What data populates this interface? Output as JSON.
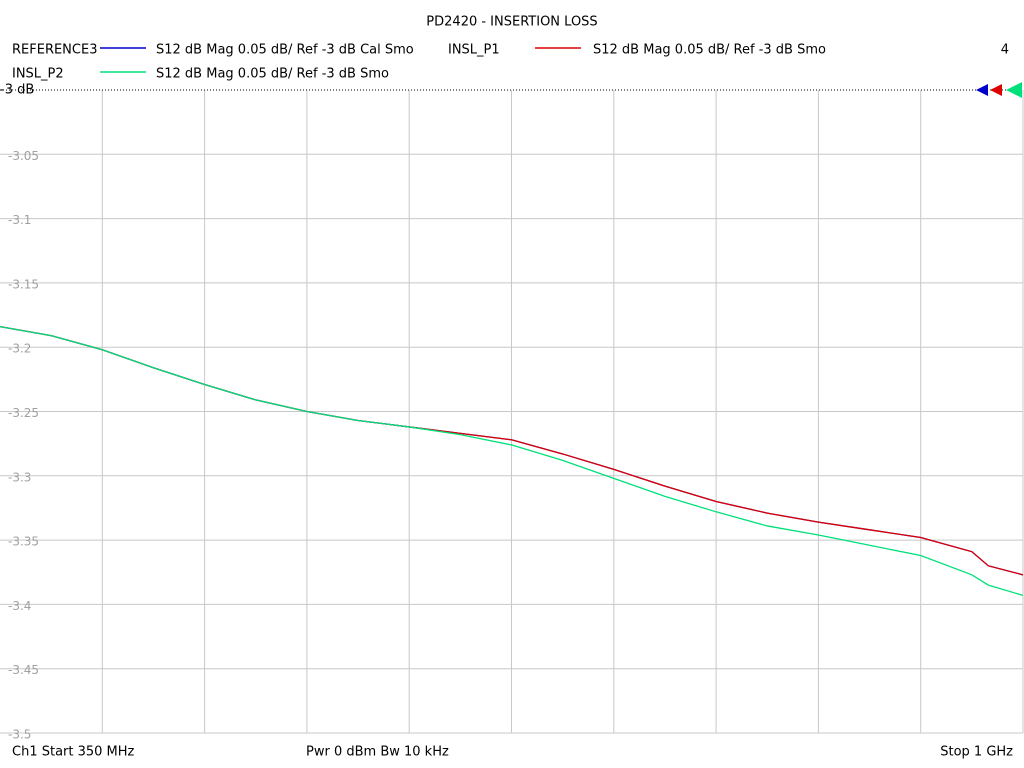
{
  "chart_data": {
    "type": "line",
    "title": "PD2420 - INSERTION LOSS",
    "channel_count": "4",
    "footer_left": "Ch1  Start  350 MHz",
    "footer_center": "Pwr  0 dBm  Bw  10 kHz",
    "footer_right": "Stop  1 GHz",
    "x": [
      350,
      382.5,
      415,
      447.5,
      480,
      512.5,
      545,
      577.5,
      610,
      642.5,
      675,
      707.5,
      740,
      772.5,
      805,
      837.5,
      870,
      902.5,
      935,
      967.5,
      978,
      1000
    ],
    "xlim": [
      350,
      1000
    ],
    "x_divisions": 10,
    "ylim": [
      -3.5,
      -3
    ],
    "yticks": [
      {
        "value": -3,
        "label": "-3 dB"
      },
      -3.05,
      -3.1,
      -3.15,
      -3.2,
      -3.25,
      -3.3,
      -3.35,
      -3.4,
      -3.45,
      -3.5
    ],
    "grid": true,
    "series": [
      {
        "name": "REFERENCE3",
        "label": "S12  dB Mag  0.05 dB/ Ref -3 dB  Cal Smo",
        "color": "#0000cc",
        "values": [
          -3.184,
          -3.191,
          -3.202,
          -3.216,
          -3.229,
          -3.241,
          -3.25,
          -3.257,
          -3.262,
          -3.267,
          -3.272,
          -3.283,
          -3.295,
          -3.308,
          -3.32,
          -3.329,
          -3.336,
          -3.342,
          -3.348,
          -3.359,
          -3.37,
          -3.377
        ]
      },
      {
        "name": "INSL_P1",
        "label": "S12  dB Mag  0.05 dB/ Ref -3 dB  Smo",
        "color": "#dd0000",
        "values": [
          -3.184,
          -3.191,
          -3.202,
          -3.216,
          -3.229,
          -3.241,
          -3.25,
          -3.257,
          -3.262,
          -3.267,
          -3.272,
          -3.283,
          -3.295,
          -3.308,
          -3.32,
          -3.329,
          -3.336,
          -3.342,
          -3.348,
          -3.359,
          -3.37,
          -3.377
        ]
      },
      {
        "name": "INSL_P2",
        "label": "S12  dB Mag  0.05 dB/ Ref -3 dB  Smo",
        "color": "#00e07a",
        "values": [
          -3.184,
          -3.191,
          -3.202,
          -3.216,
          -3.229,
          -3.241,
          -3.25,
          -3.257,
          -3.262,
          -3.268,
          -3.276,
          -3.288,
          -3.302,
          -3.316,
          -3.328,
          -3.339,
          -3.346,
          -3.354,
          -3.362,
          -3.377,
          -3.385,
          -3.393
        ]
      }
    ]
  }
}
